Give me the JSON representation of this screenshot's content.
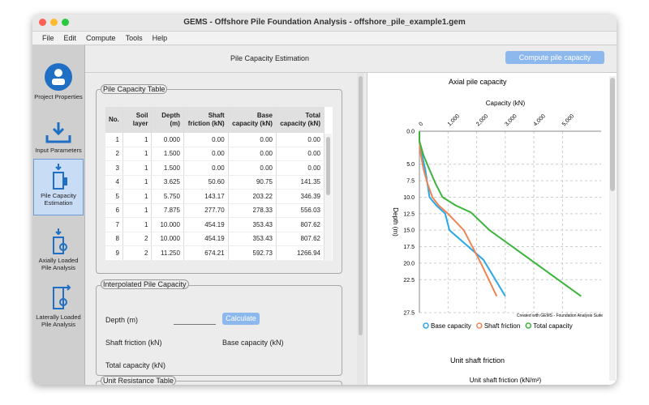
{
  "window": {
    "title": "GEMS - Offshore Pile Foundation Analysis - offshore_pile_example1.gem"
  },
  "menu": [
    "File",
    "Edit",
    "Compute",
    "Tools",
    "Help"
  ],
  "sidebar": [
    "Project Properties",
    "Input Parameters",
    "Pile Capacity Estimation",
    "Axially Loaded Pile Analysis",
    "Laterally Loaded Pile Analysis"
  ],
  "header": {
    "title": "Pile Capacity Estimation",
    "button": "Compute pile capacity"
  },
  "table": {
    "title": "Pile Capacity Table",
    "columns": [
      "No.",
      "Soil layer",
      "Depth (m)",
      "Shaft friction (kN)",
      "Base capacity (kN)",
      "Total capacity (kN)"
    ],
    "rows": [
      [
        "1",
        "1",
        "0.000",
        "0.00",
        "0.00",
        "0.00"
      ],
      [
        "2",
        "1",
        "1.500",
        "0.00",
        "0.00",
        "0.00"
      ],
      [
        "3",
        "1",
        "1.500",
        "0.00",
        "0.00",
        "0.00"
      ],
      [
        "4",
        "1",
        "3.625",
        "50.60",
        "90.75",
        "141.35"
      ],
      [
        "5",
        "1",
        "5.750",
        "143.17",
        "203.22",
        "346.39"
      ],
      [
        "6",
        "1",
        "7.875",
        "277.70",
        "278.33",
        "556.03"
      ],
      [
        "7",
        "1",
        "10.000",
        "454.19",
        "353.43",
        "807.62"
      ],
      [
        "8",
        "2",
        "10.000",
        "454.19",
        "353.43",
        "807.62"
      ],
      [
        "9",
        "2",
        "11.250",
        "674.21",
        "592.73",
        "1266.94"
      ]
    ]
  },
  "interpolated": {
    "title": "Interpolated Pile Capacity",
    "depth_label": "Depth (m)",
    "button": "Calculate",
    "shaft_label": "Shaft friction (kN)",
    "base_label": "Base capacity (kN)",
    "total_label": "Total capacity (kN)"
  },
  "unit_table": {
    "title": "Unit Resistance Table"
  },
  "chart_data": {
    "type": "line",
    "title": "Axial pile capacity",
    "x_label": "Capacity (kN)",
    "y_label": "Depth (m)",
    "annotation": "Created with GEMS - Foundation Analysis Suite",
    "xlim": [
      0,
      6350
    ],
    "xticks": [
      0,
      {
        "value": 1000,
        "label": "1,000"
      },
      {
        "value": 2000,
        "label": "2,000"
      },
      {
        "value": 3000,
        "label": "3,000"
      },
      {
        "value": 4000,
        "label": "4,000"
      },
      {
        "value": 5000,
        "label": "5,000"
      }
    ],
    "ylim": [
      0,
      27.5
    ],
    "y_inverted": true,
    "yticks": [
      {
        "value": 0,
        "label": "0.0"
      },
      {
        "value": 5,
        "label": "5.0"
      },
      7.5,
      {
        "value": 10,
        "label": "10.0"
      },
      12.5,
      {
        "value": 15,
        "label": "15.0"
      },
      17.5,
      {
        "value": 20,
        "label": "20.0"
      },
      22.5,
      27.5
    ],
    "grid": true,
    "legend": "bottom",
    "series": [
      {
        "name": "Base capacity",
        "color": "#2aa8e8",
        "x": [
          0,
          0,
          91,
          203,
          278,
          353,
          593,
          900,
          1050,
          2240,
          3000
        ],
        "y": [
          0,
          1.5,
          3.625,
          5.75,
          7.875,
          10,
          11.25,
          12.5,
          15,
          19.5,
          25
        ]
      },
      {
        "name": "Shaft friction",
        "color": "#ee8455",
        "x": [
          0,
          0,
          51,
          143,
          278,
          454,
          674,
          1000,
          1550,
          1850,
          2150,
          2700
        ],
        "y": [
          0,
          1.5,
          3.625,
          5.75,
          7.875,
          10,
          11.25,
          12.5,
          15,
          17.5,
          20,
          25
        ]
      },
      {
        "name": "Total capacity",
        "color": "#3cb43c",
        "x": [
          0,
          0,
          141,
          346,
          556,
          808,
          1267,
          1800,
          2450,
          5650
        ],
        "y": [
          0,
          1.5,
          3.625,
          5.75,
          7.875,
          10,
          11.25,
          12.3,
          15,
          25
        ]
      }
    ]
  },
  "chart2": {
    "title": "Unit shaft friction",
    "x_label": "Unit shaft friction (kN/m²)"
  }
}
